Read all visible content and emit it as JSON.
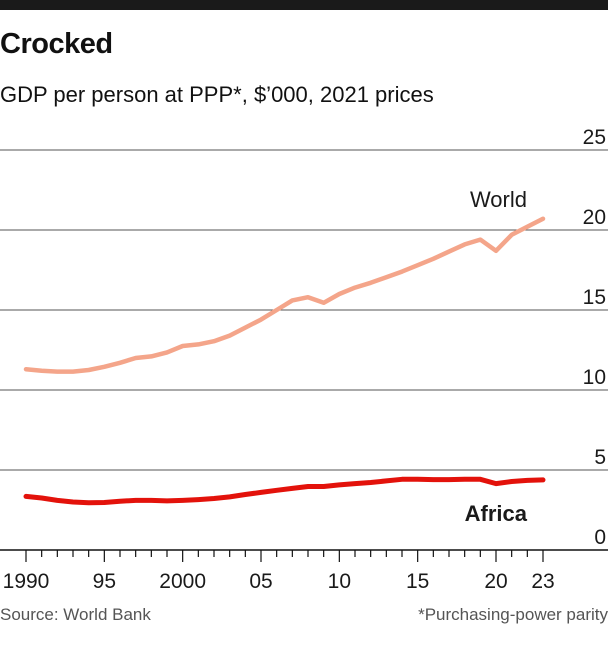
{
  "header": {
    "title": "Crocked",
    "subtitle": "GDP per person at PPP*, $’000, 2021 prices"
  },
  "footer": {
    "source": "Source: World Bank",
    "note": "*Purchasing-power parity"
  },
  "colors": {
    "world": "#f4a58a",
    "africa": "#e3120b",
    "grid": "#555555",
    "text": "#1a1a1a"
  },
  "chart_data": {
    "type": "line",
    "title": "Crocked",
    "subtitle": "GDP per person at PPP*, $’000, 2021 prices",
    "xlabel": "",
    "ylabel": "",
    "xlim": [
      1990,
      2023
    ],
    "ylim": [
      0,
      25
    ],
    "y_ticks": [
      0,
      5,
      10,
      15,
      20,
      25
    ],
    "y_tick_labels": [
      "0",
      "5",
      "10",
      "15",
      "20",
      "25"
    ],
    "x_ticks": [
      1990,
      1995,
      2000,
      2005,
      2010,
      2015,
      2020,
      2023
    ],
    "x_tick_labels": [
      "1990",
      "95",
      "2000",
      "05",
      "10",
      "15",
      "20",
      "23"
    ],
    "grid": true,
    "x": [
      1990,
      1991,
      1992,
      1993,
      1994,
      1995,
      1996,
      1997,
      1998,
      1999,
      2000,
      2001,
      2002,
      2003,
      2004,
      2005,
      2006,
      2007,
      2008,
      2009,
      2010,
      2011,
      2012,
      2013,
      2014,
      2015,
      2016,
      2017,
      2018,
      2019,
      2020,
      2021,
      2022,
      2023
    ],
    "series": [
      {
        "name": "World",
        "label": "World",
        "values": [
          11.3,
          11.2,
          11.15,
          11.15,
          11.25,
          11.45,
          11.7,
          12.0,
          12.1,
          12.35,
          12.75,
          12.85,
          13.05,
          13.4,
          13.9,
          14.4,
          15.0,
          15.6,
          15.8,
          15.45,
          16.0,
          16.4,
          16.7,
          17.05,
          17.4,
          17.8,
          18.2,
          18.65,
          19.1,
          19.4,
          18.7,
          19.7,
          20.2,
          20.7
        ]
      },
      {
        "name": "Africa",
        "label": "Africa",
        "values": [
          3.35,
          3.25,
          3.1,
          3.0,
          2.95,
          2.97,
          3.05,
          3.1,
          3.1,
          3.07,
          3.1,
          3.15,
          3.22,
          3.32,
          3.47,
          3.6,
          3.73,
          3.85,
          3.97,
          3.97,
          4.07,
          4.15,
          4.22,
          4.32,
          4.42,
          4.42,
          4.4,
          4.4,
          4.42,
          4.42,
          4.15,
          4.28,
          4.35,
          4.38
        ]
      }
    ]
  }
}
